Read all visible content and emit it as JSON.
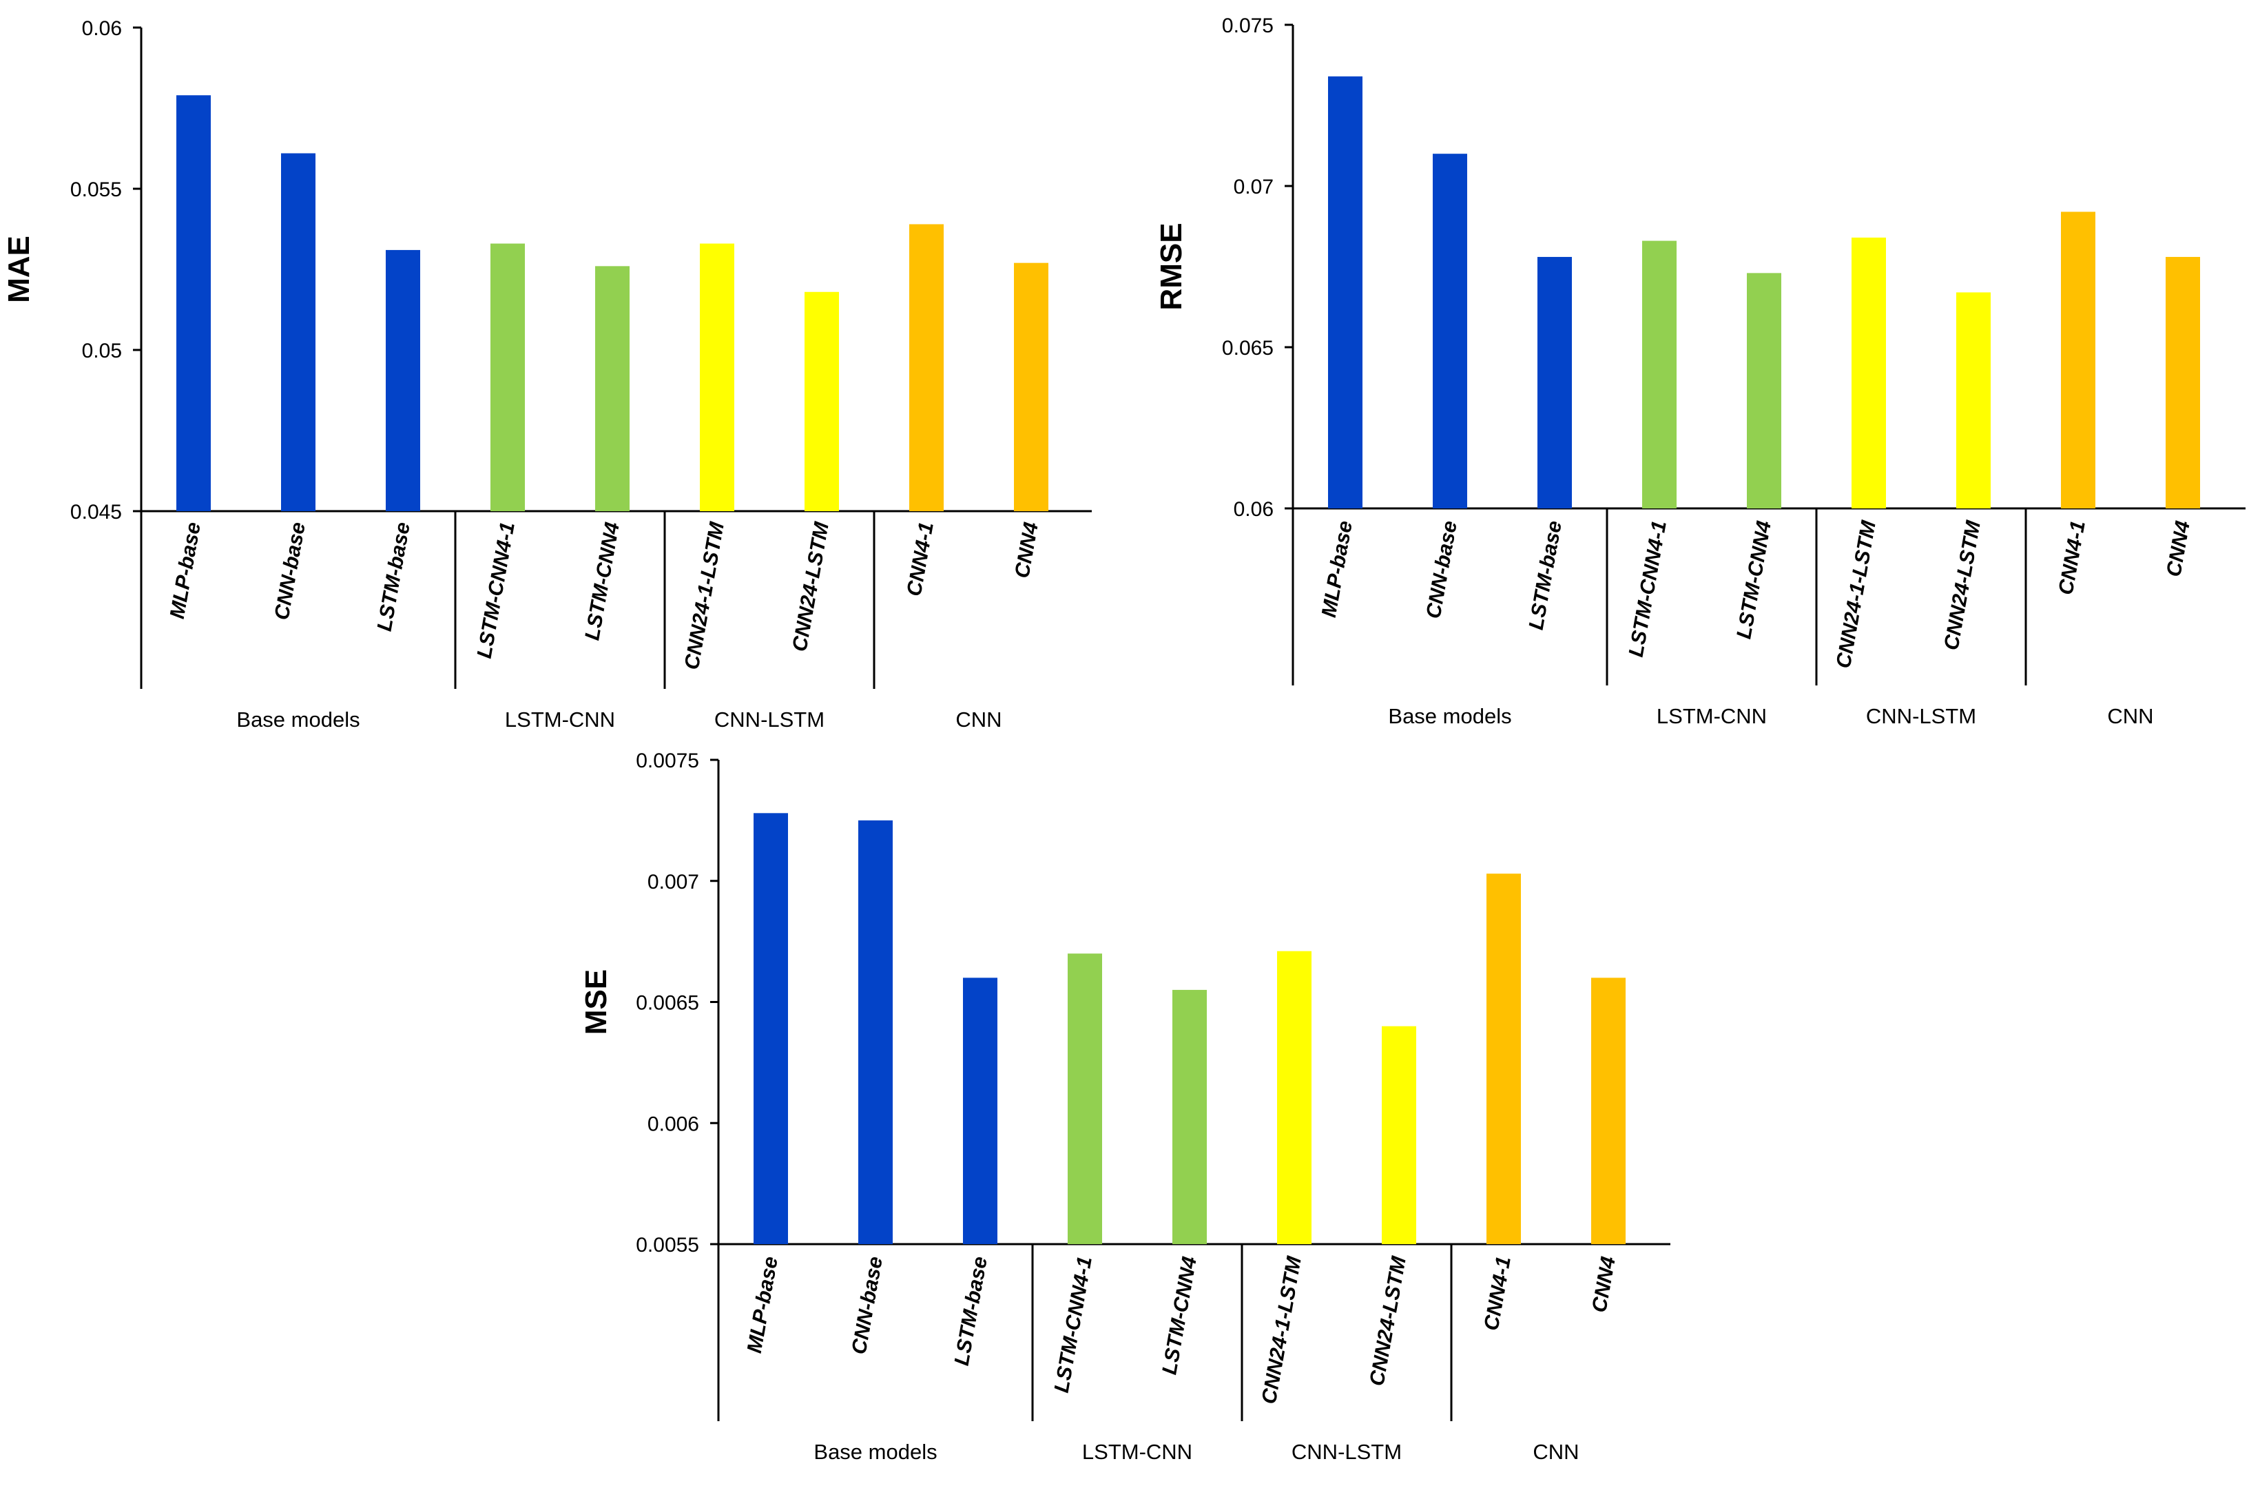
{
  "chart_data": [
    {
      "type": "bar",
      "ylabel": "MAE",
      "xlabel": "",
      "ylim": [
        0.045,
        0.06
      ],
      "yticks": [
        "0.06",
        "0.055",
        "0.05",
        "0.045"
      ],
      "yticks_values": [
        0.06,
        0.055,
        0.05,
        0.045
      ],
      "categories": [
        "MLP-base",
        "CNN-base",
        "LSTM-base",
        "LSTM-CNN4-1",
        "LSTM-CNN4",
        "CNN24-1-LSTM",
        "CNN24-LSTM",
        "CNN4-1",
        "CNN4"
      ],
      "values": [
        0.0579,
        0.0561,
        0.0531,
        0.0533,
        0.0526,
        0.0533,
        0.0518,
        0.0539,
        0.0527
      ],
      "groups": [
        {
          "label": "Base models",
          "count": 3
        },
        {
          "label": "LSTM-CNN",
          "count": 2
        },
        {
          "label": "CNN-LSTM",
          "count": 2
        },
        {
          "label": "CNN",
          "count": 2
        }
      ]
    },
    {
      "type": "bar",
      "ylabel": "RMSE",
      "xlabel": "",
      "ylim": [
        0.06,
        0.075
      ],
      "yticks": [
        "0.075",
        "0.07",
        "0.065",
        "0.06"
      ],
      "yticks_values": [
        0.075,
        0.07,
        0.065,
        0.06
      ],
      "categories": [
        "MLP-base",
        "CNN-base",
        "LSTM-base",
        "LSTM-CNN4-1",
        "LSTM-CNN4",
        "CNN24-1-LSTM",
        "CNN24-LSTM",
        "CNN4-1",
        "CNN4"
      ],
      "values": [
        0.0734,
        0.071,
        0.0678,
        0.0683,
        0.0673,
        0.0684,
        0.0667,
        0.0692,
        0.0678
      ],
      "groups": [
        {
          "label": "Base models",
          "count": 3
        },
        {
          "label": "LSTM-CNN",
          "count": 2
        },
        {
          "label": "CNN-LSTM",
          "count": 2
        },
        {
          "label": "CNN",
          "count": 2
        }
      ]
    },
    {
      "type": "bar",
      "ylabel": "MSE",
      "xlabel": "",
      "ylim": [
        0.0055,
        0.0075
      ],
      "yticks": [
        "0.0075",
        "0.007",
        "0.0065",
        "0.006",
        "0.0055"
      ],
      "yticks_values": [
        0.0075,
        0.007,
        0.0065,
        0.006,
        0.0055
      ],
      "categories": [
        "MLP-base",
        "CNN-base",
        "LSTM-base",
        "LSTM-CNN4-1",
        "LSTM-CNN4",
        "CNN24-1-LSTM",
        "CNN24-LSTM",
        "CNN4-1",
        "CNN4"
      ],
      "values": [
        0.00728,
        0.00725,
        0.0066,
        0.0067,
        0.00655,
        0.00671,
        0.0064,
        0.00703,
        0.0066
      ],
      "groups": [
        {
          "label": "Base models",
          "count": 3
        },
        {
          "label": "LSTM-CNN",
          "count": 2
        },
        {
          "label": "CNN-LSTM",
          "count": 2
        },
        {
          "label": "CNN",
          "count": 2
        }
      ]
    }
  ],
  "colors": {
    "base": "#0343C8",
    "lstm_cnn": "#92D050",
    "cnn_lstm": "#FFFF00",
    "cnn": "#FFC000",
    "axis": "#000000"
  },
  "category_color_keys": [
    "base",
    "base",
    "base",
    "lstm_cnn",
    "lstm_cnn",
    "cnn_lstm",
    "cnn_lstm",
    "cnn",
    "cnn"
  ]
}
